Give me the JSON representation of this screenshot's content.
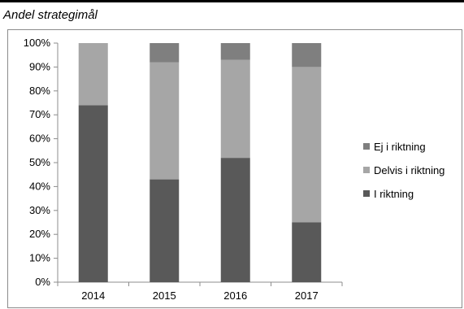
{
  "chart_data": {
    "type": "bar",
    "stacked": true,
    "title": "Andel strategimål",
    "categories": [
      "2014",
      "2015",
      "2016",
      "2017"
    ],
    "series": [
      {
        "name": "I riktning",
        "color": "#595959",
        "values": [
          74,
          43,
          52,
          25
        ]
      },
      {
        "name": "Delvis i riktning",
        "color": "#a6a6a6",
        "values": [
          26,
          49,
          41,
          65
        ]
      },
      {
        "name": "Ej i riktning",
        "color": "#7f7f7f",
        "values": [
          0,
          8,
          7,
          10
        ]
      }
    ],
    "yticks": [
      "0%",
      "10%",
      "20%",
      "30%",
      "40%",
      "50%",
      "60%",
      "70%",
      "80%",
      "90%",
      "100%"
    ],
    "ylim": [
      0,
      100
    ],
    "grid": false,
    "legend": {
      "placement": "right",
      "order": [
        "Ej i riktning",
        "Delvis i riktning",
        "I riktning"
      ]
    }
  }
}
